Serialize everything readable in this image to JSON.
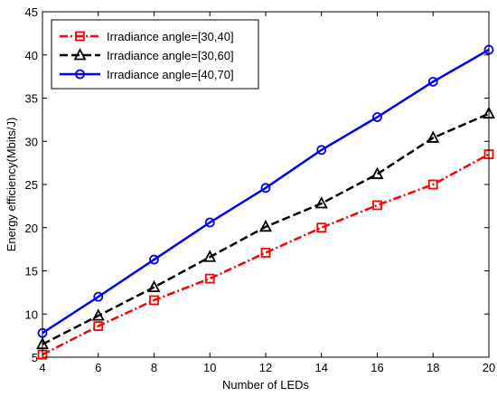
{
  "chart_data": {
    "type": "line",
    "xlabel": "Number of LEDs",
    "ylabel": "Energy efficiency(Mbits/J)",
    "xlim": [
      4,
      20
    ],
    "ylim": [
      5,
      45
    ],
    "x_ticks": [
      4,
      6,
      8,
      10,
      12,
      14,
      16,
      18,
      20
    ],
    "y_ticks": [
      5,
      10,
      15,
      20,
      25,
      30,
      35,
      40,
      45
    ],
    "grid": false,
    "legend_position": "top-left",
    "x": [
      4,
      6,
      8,
      10,
      12,
      14,
      16,
      18,
      20
    ],
    "series": [
      {
        "name": "Irradiance angle=[30,40]",
        "values": [
          5.3,
          8.6,
          11.6,
          14.1,
          17.1,
          20.0,
          22.6,
          25.0,
          28.5
        ],
        "color": "#ff0000",
        "line_style": "dash-dot",
        "marker": "square"
      },
      {
        "name": "Irradiance angle=[30,60]",
        "values": [
          6.5,
          9.8,
          13.1,
          16.6,
          20.1,
          22.8,
          26.2,
          30.4,
          33.2
        ],
        "color": "#000000",
        "line_style": "dashed",
        "marker": "triangle"
      },
      {
        "name": "Irradiance angle=[40,70]",
        "values": [
          7.8,
          12.0,
          16.3,
          20.6,
          24.6,
          29.0,
          32.8,
          36.9,
          40.6
        ],
        "color": "#0000ff",
        "line_style": "solid",
        "marker": "circle"
      }
    ]
  }
}
